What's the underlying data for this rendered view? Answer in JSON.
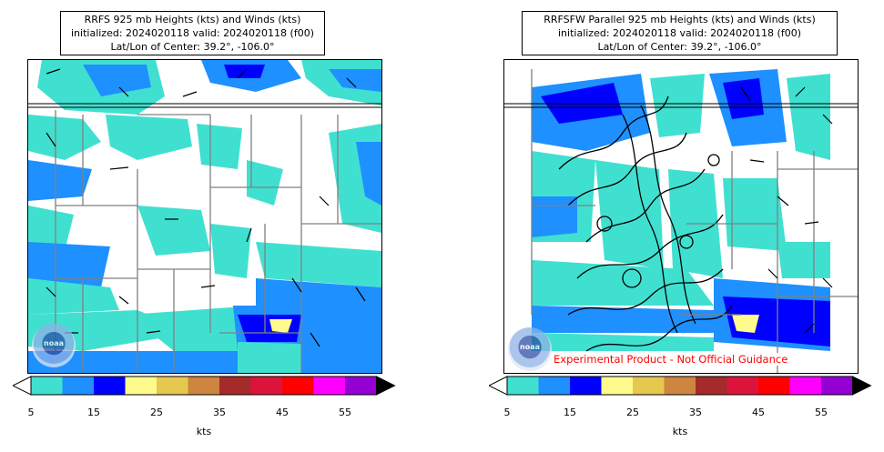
{
  "panels": [
    {
      "id": "left",
      "title_line1": "RRFS 925 mb Heights (kts) and Winds (kts)",
      "title_line2": "initialized: 2024020118 valid: 2024020118 (f00)",
      "title_line3": "Lat/Lon of Center: 39.2°, -106.0°",
      "logo_text": "noaa"
    },
    {
      "id": "right",
      "title_line1": "RRFSFW Parallel 925 mb Heights (kts) and Winds (kts)",
      "title_line2": "initialized: 2024020118 valid: 2024020118 (f00)",
      "title_line3": "Lat/Lon of Center: 39.2°, -106.0°",
      "logo_text": "noaa",
      "disclaimer": "Experimental Product - Not Official Guidance"
    }
  ],
  "colorbar": {
    "colors": [
      "#40e0d0",
      "#1e90ff",
      "#0000ff",
      "#fffa8c",
      "#e6c850",
      "#cd853f",
      "#a52a2a",
      "#dc143c",
      "#ff0000",
      "#ff00ff",
      "#9400d3"
    ],
    "under_color": "#ffffff",
    "over_color": "#000000",
    "tick_labels": [
      "5",
      "15",
      "25",
      "35",
      "45",
      "55"
    ],
    "unit": "kts"
  }
}
